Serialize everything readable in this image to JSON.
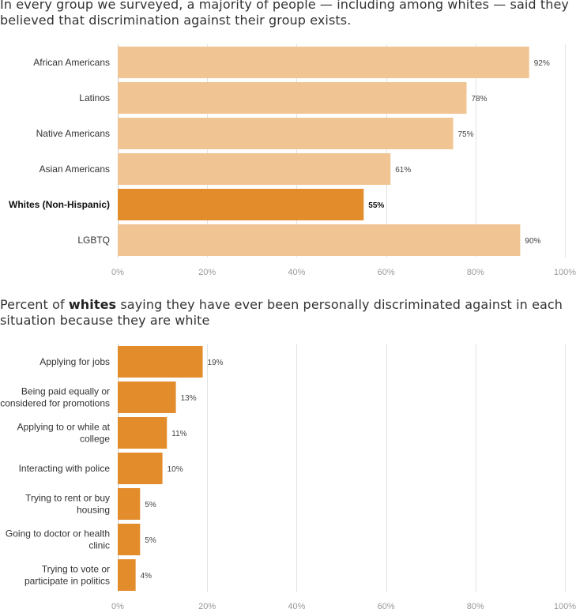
{
  "colors": {
    "light_bar": "#f0c593",
    "highlight_bar": "#e38c2c",
    "bar_stroke": "#d8a066"
  },
  "chart_data": [
    {
      "type": "bar",
      "orientation": "horizontal",
      "title": "In every group we surveyed, a majority of people — including among whites — said they believed that discrimination against their group exists.",
      "categories": [
        "African Americans",
        "Latinos",
        "Native Americans",
        "Asian Americans",
        "Whites (Non-Hispanic)",
        "LGBTQ"
      ],
      "values": [
        92,
        78,
        75,
        61,
        55,
        90
      ],
      "value_labels": [
        "92%",
        "78%",
        "75%",
        "61%",
        "55%",
        "90%"
      ],
      "highlight": [
        false,
        false,
        false,
        false,
        true,
        false
      ],
      "xlim": [
        0,
        100
      ],
      "xticks": [
        "0%",
        "20%",
        "40%",
        "60%",
        "80%",
        "100%"
      ],
      "grid": true
    },
    {
      "type": "bar",
      "orientation": "horizontal",
      "title_prefix": "Percent of ",
      "title_bold": "whites",
      "title_suffix": " saying they have ever been personally discriminated against in each situation because they are white",
      "categories": [
        [
          "Applying for jobs"
        ],
        [
          "Being paid equally or",
          "considered for promotions"
        ],
        [
          "Applying to or while at",
          "college"
        ],
        [
          "Interacting with police"
        ],
        [
          "Trying to rent or buy",
          "housing"
        ],
        [
          "Going to doctor or health",
          "clinic"
        ],
        [
          "Trying to vote or",
          "participate in politics"
        ]
      ],
      "values": [
        19,
        13,
        11,
        10,
        5,
        5,
        4
      ],
      "value_labels": [
        "19%",
        "13%",
        "11%",
        "10%",
        "5%",
        "5%",
        "4%"
      ],
      "highlight": [
        true,
        true,
        true,
        true,
        true,
        true,
        true
      ],
      "xlim": [
        0,
        100
      ],
      "xticks": [
        "0%",
        "20%",
        "40%",
        "60%",
        "80%",
        "100%"
      ],
      "grid": true
    }
  ]
}
